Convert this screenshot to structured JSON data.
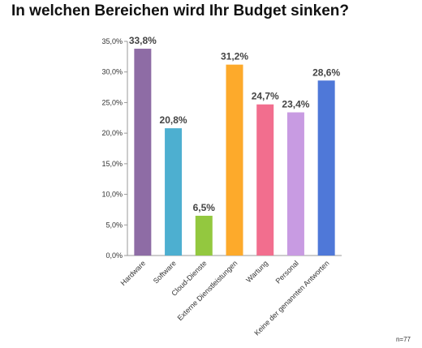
{
  "title": "In welchen Bereichen wird Ihr Budget sinken?",
  "sample_note": "n=77",
  "chart_data": {
    "type": "bar",
    "title": "In welchen Bereichen wird Ihr Budget sinken?",
    "xlabel": "",
    "ylabel": "",
    "ylim": [
      0,
      35
    ],
    "yticks": [
      0,
      5,
      10,
      15,
      20,
      25,
      30,
      35
    ],
    "ytick_labels": [
      "0,0%",
      "5,0%",
      "10,0%",
      "15,0%",
      "20,0%",
      "25,0%",
      "30,0%",
      "35,0%"
    ],
    "grid": false,
    "legend": "none",
    "categories": [
      "Hardware",
      "Software",
      "Cloud-Dienste",
      "Externe Dienstleistungen",
      "Wartung",
      "Personal",
      "Keine der genannten Antworten"
    ],
    "values": [
      33.8,
      20.8,
      6.5,
      31.2,
      24.7,
      23.4,
      28.6
    ],
    "data_labels": [
      "33,8%",
      "20,8%",
      "6,5%",
      "31,2%",
      "24,7%",
      "23,4%",
      "28,6%"
    ],
    "colors": [
      "#8E6CA5",
      "#4DAFD0",
      "#93C83F",
      "#FDAA2B",
      "#F26E8E",
      "#C89BE2",
      "#4F78D8"
    ]
  }
}
